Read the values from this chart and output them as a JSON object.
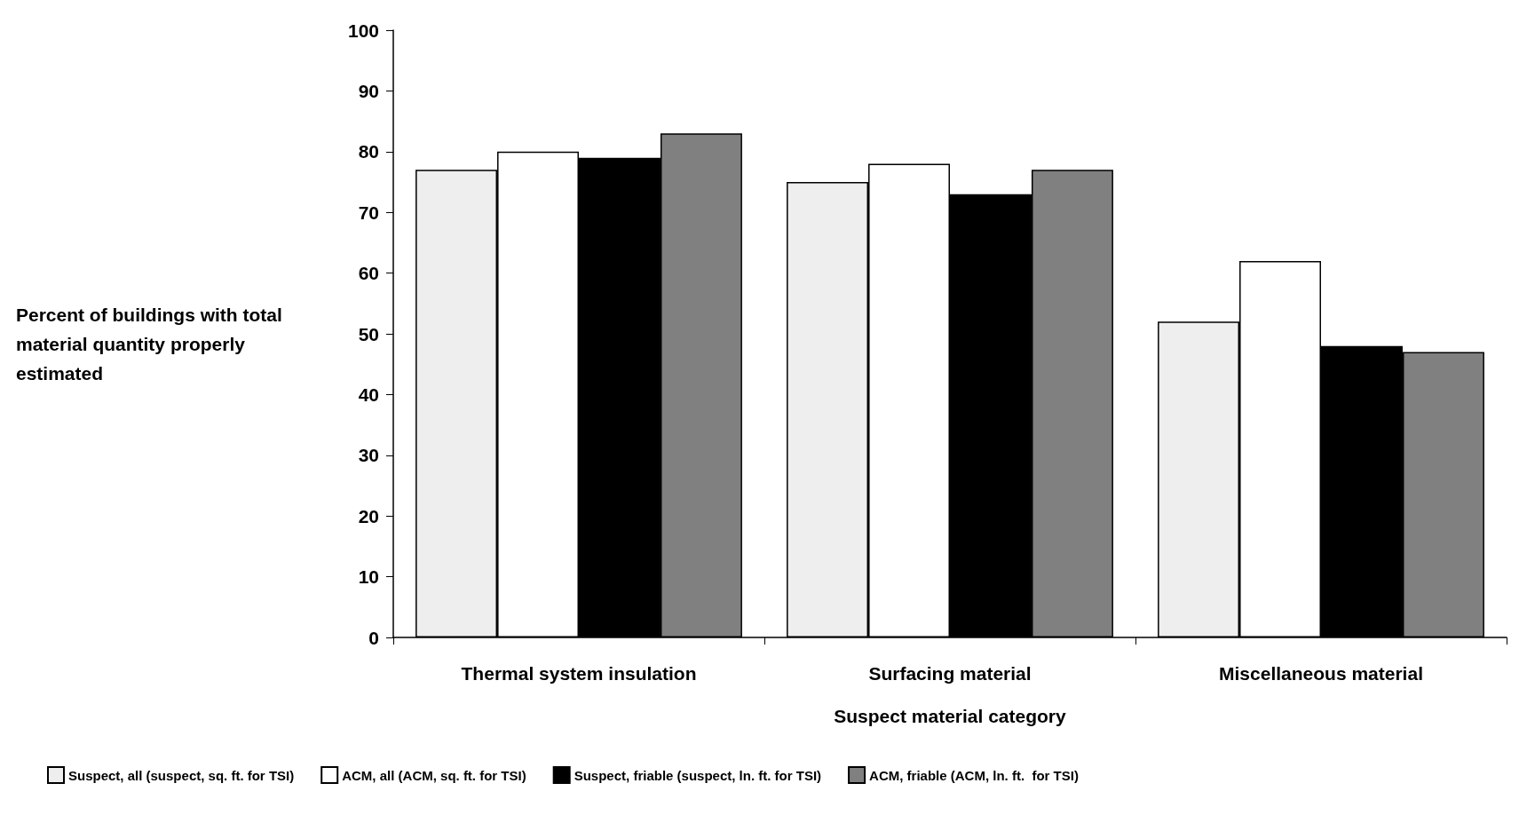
{
  "chart_data": {
    "type": "bar",
    "xlabel": "Suspect material category",
    "ylabel": "Percent of buildings with total material quantity properly estimated",
    "categories": [
      "Thermal system insulation",
      "Surfacing material",
      "Miscellaneous material"
    ],
    "series": [
      {
        "name": "Suspect, all (suspect, sq. ft. for TSI)",
        "color": "#eeeeee",
        "values": [
          77,
          75,
          52
        ]
      },
      {
        "name": "ACM, all (ACM, sq. ft. for TSI)",
        "color": "#ffffff",
        "values": [
          80,
          78,
          62
        ]
      },
      {
        "name": "Suspect, friable (suspect, ln. ft. for TSI)",
        "color": "#000000",
        "values": [
          79,
          73,
          48
        ]
      },
      {
        "name": "ACM, friable (ACM, ln. ft.  for TSI)",
        "color": "#808080",
        "values": [
          83,
          77,
          47
        ]
      }
    ],
    "ylim": [
      0,
      100
    ],
    "yticks": [
      0,
      10,
      20,
      30,
      40,
      50,
      60,
      70,
      80,
      90,
      100
    ],
    "grid": false,
    "legend": "bottom"
  }
}
